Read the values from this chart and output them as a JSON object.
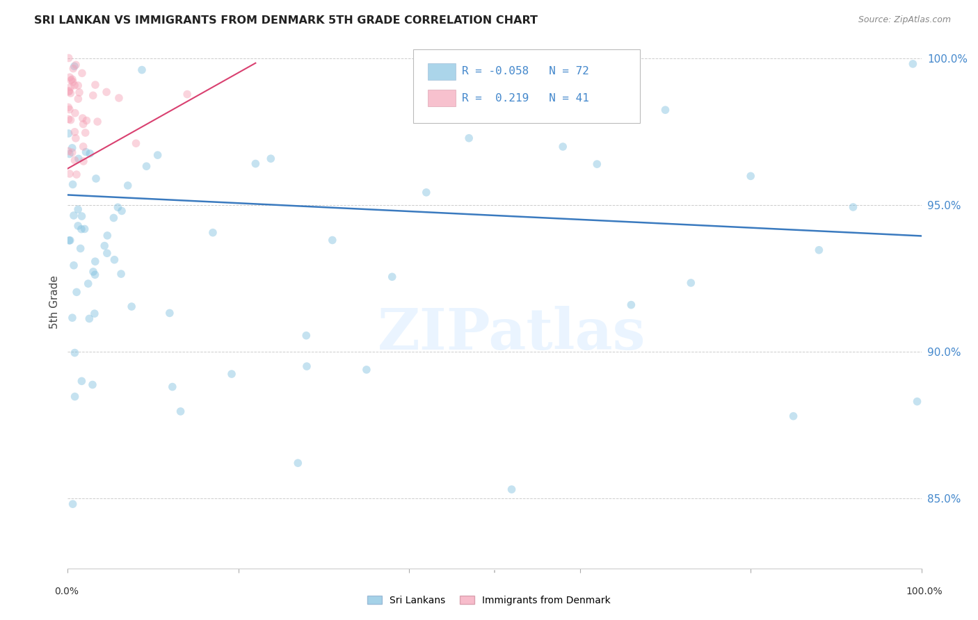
{
  "title": "SRI LANKAN VS IMMIGRANTS FROM DENMARK 5TH GRADE CORRELATION CHART",
  "source": "Source: ZipAtlas.com",
  "ylabel": "5th Grade",
  "xlim": [
    0.0,
    1.0
  ],
  "ylim": [
    0.826,
    1.008
  ],
  "yticks": [
    0.85,
    0.9,
    0.95,
    1.0
  ],
  "ytick_labels": [
    "85.0%",
    "90.0%",
    "95.0%",
    "100.0%"
  ],
  "grid_color": "#cccccc",
  "background_color": "#ffffff",
  "sri_lankan_color": "#7fbfdf",
  "denmark_color": "#f4a0b5",
  "sri_lankan_line_color": "#3a7abf",
  "denmark_line_color": "#d94070",
  "legend_label_blue": "Sri Lankans",
  "legend_label_pink": "Immigrants from Denmark",
  "R_blue": -0.058,
  "N_blue": 72,
  "R_pink": 0.219,
  "N_pink": 41,
  "watermark": "ZIPatlas",
  "marker_size": 70,
  "marker_alpha": 0.45,
  "blue_line_x0": 0.0,
  "blue_line_x1": 1.0,
  "blue_line_y0": 0.9535,
  "blue_line_y1": 0.9395,
  "pink_line_x0": 0.0,
  "pink_line_x1": 0.22,
  "pink_line_y0": 0.9625,
  "pink_line_y1": 0.9985
}
